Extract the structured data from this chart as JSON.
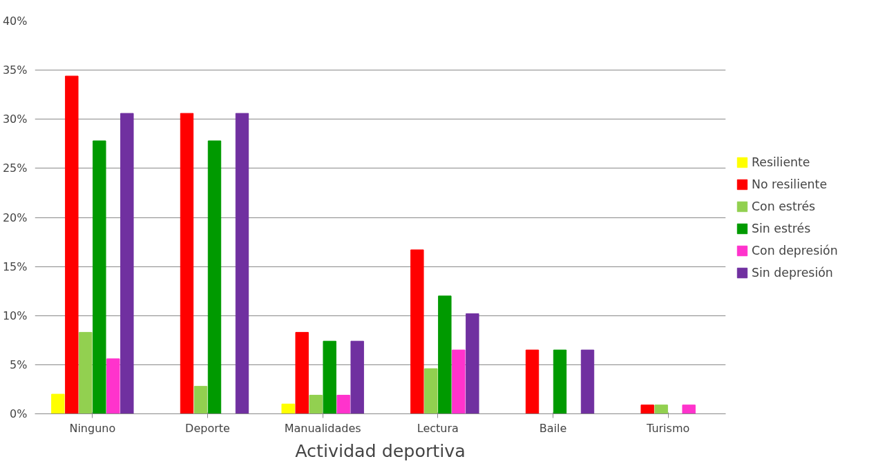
{
  "chart_data": {
    "type": "bar",
    "xlabel": "Actividad deportiva",
    "categories": [
      "Ninguno",
      "Deporte",
      "Manualidades",
      "Lectura",
      "Baile",
      "Turismo"
    ],
    "series": [
      {
        "name": "Resiliente",
        "color": "#ffff00",
        "values": [
          2.0,
          0,
          1.0,
          0,
          0,
          0
        ]
      },
      {
        "name": "No resiliente",
        "color": "#ff0000",
        "values": [
          34.4,
          30.6,
          8.3,
          16.7,
          6.5,
          0.9
        ]
      },
      {
        "name": "Con estrés",
        "color": "#92d050",
        "values": [
          8.3,
          2.8,
          1.9,
          4.6,
          0,
          0.9
        ]
      },
      {
        "name": "Sin estrés",
        "color": "#009a00",
        "values": [
          27.8,
          27.8,
          7.4,
          12.0,
          6.5,
          0
        ]
      },
      {
        "name": "Con depresión",
        "color": "#ff33cc",
        "values": [
          5.6,
          0,
          1.9,
          6.5,
          0,
          0.9
        ]
      },
      {
        "name": "Sin depresión",
        "color": "#7030a0",
        "values": [
          30.6,
          30.6,
          7.4,
          10.2,
          6.5,
          0
        ]
      }
    ],
    "ylim": [
      0,
      40
    ],
    "yticks": [
      {
        "value": 0,
        "label": "0%"
      },
      {
        "value": 5,
        "label": "5%"
      },
      {
        "value": 10,
        "label": "10%"
      },
      {
        "value": 15,
        "label": "15%"
      },
      {
        "value": 20,
        "label": "20%"
      },
      {
        "value": 25,
        "label": "25%"
      },
      {
        "value": 30,
        "label": "30%"
      },
      {
        "value": 35,
        "label": "35%"
      },
      {
        "value": 40,
        "label": "40%"
      }
    ],
    "grid": "y",
    "legend": "right"
  }
}
